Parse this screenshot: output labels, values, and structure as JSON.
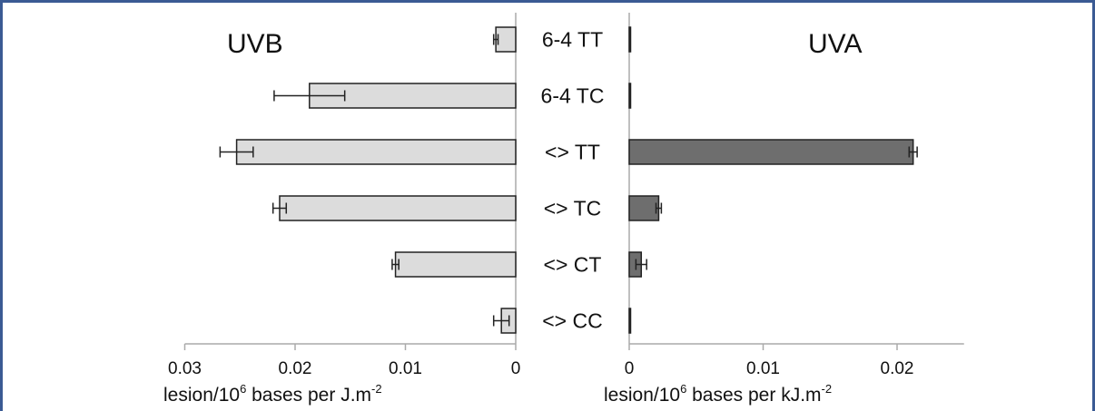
{
  "chart_data": [
    {
      "type": "bar",
      "orientation": "horizontal",
      "direction": "reversed",
      "title": "UVB",
      "categories": [
        "6-4 TT",
        "6-4 TC",
        "<> TT",
        "<> TC",
        "<> CT",
        "<> CC"
      ],
      "values": [
        0.0018,
        0.0187,
        0.0253,
        0.0214,
        0.0109,
        0.0013
      ],
      "errors": [
        0.0002,
        0.0032,
        0.0015,
        0.0006,
        0.0003,
        0.0007
      ],
      "xlim": [
        0,
        0.03
      ],
      "xticks": [
        0.03,
        0.02,
        0.01,
        0
      ],
      "xtick_labels": [
        "0.03",
        "0.02",
        "0.01",
        "0"
      ],
      "xlabel": {
        "main": "lesion/10",
        "sup1": "6",
        "mid": " bases per J.m",
        "sup2": "-2"
      },
      "bar_color": "#dcdcdc",
      "grid": false
    },
    {
      "type": "bar",
      "orientation": "horizontal",
      "title": "UVA",
      "categories": [
        "6-4 TT",
        "6-4 TC",
        "<> TT",
        "<> TC",
        "<> CT",
        "<> CC"
      ],
      "values": [
        3e-05,
        2e-05,
        0.0212,
        0.0022,
        0.0009,
        1e-05
      ],
      "errors": [
        0,
        0,
        0.0003,
        0.0002,
        0.0004,
        0
      ],
      "xlim": [
        0,
        0.025
      ],
      "xticks": [
        0,
        0.01,
        0.02
      ],
      "xtick_labels": [
        "0",
        "0.01",
        "0.02"
      ],
      "xlabel": {
        "main": "lesion/10",
        "sup1": "6",
        "mid": " bases per kJ.m",
        "sup2": "-2"
      },
      "bar_color": "#6e6e6e",
      "grid": false
    }
  ],
  "colors": {
    "frame": "#3a5a93",
    "axis": "#aaaaaa",
    "bar_edge": "#222222",
    "text": "#111111"
  }
}
